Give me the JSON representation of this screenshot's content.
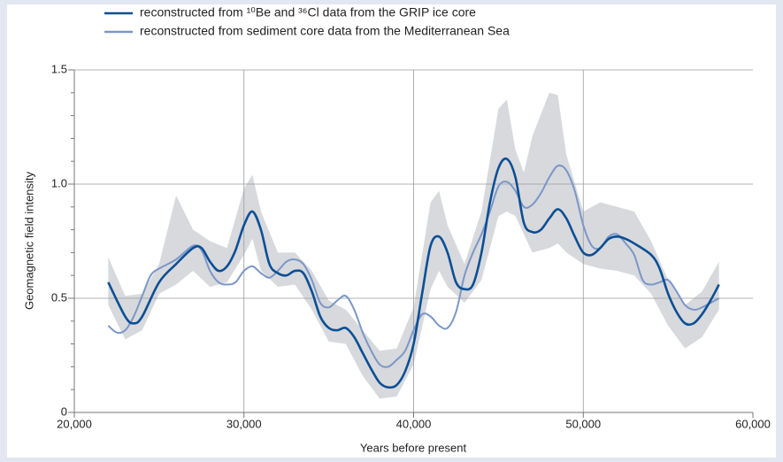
{
  "chart_data": {
    "type": "line",
    "xlabel": "Years before present",
    "ylabel": "Geomagnetic field intensity",
    "xlim": [
      20000,
      60000
    ],
    "xticks": [
      {
        "value": 20000,
        "label": "20,000"
      },
      {
        "value": 30000,
        "label": "30,000"
      },
      {
        "value": 40000,
        "label": "40,000"
      },
      {
        "value": 50000,
        "label": "50,000"
      },
      {
        "value": 60000,
        "label": "60,000"
      }
    ],
    "ylim": [
      0,
      1.5
    ],
    "yticks": [
      0,
      0.5,
      {
        "value": 1,
        "label": "1.0"
      },
      1.5
    ],
    "yminorticks": [
      0.1,
      0.2,
      0.3,
      0.4,
      0.6,
      0.7,
      0.8,
      0.9,
      1.1,
      1.2,
      1.3,
      1.4
    ],
    "grid": true,
    "series": [
      {
        "name": "reconstructed from ¹⁰Be and ³⁶Cl data from the GRIP ice core",
        "color": "#0b4f94",
        "x": [
          22000,
          23000,
          23500,
          24000,
          25000,
          26000,
          27000,
          27500,
          28000,
          28500,
          29000,
          29500,
          30000,
          30500,
          31000,
          31500,
          32000,
          32500,
          33000,
          33500,
          34000,
          34500,
          35000,
          35500,
          36000,
          36500,
          37000,
          37500,
          38000,
          38500,
          39000,
          39500,
          40000,
          40500,
          41000,
          41500,
          42000,
          42500,
          43000,
          43500,
          44000,
          44500,
          45000,
          45500,
          46000,
          46500,
          47000,
          47500,
          48000,
          48500,
          49000,
          49500,
          50000,
          50500,
          51000,
          51500,
          52000,
          52500,
          53000,
          54000,
          54500,
          55000,
          55500,
          56000,
          56500,
          57000,
          57500,
          58000
        ],
        "values": [
          0.57,
          0.42,
          0.39,
          0.42,
          0.57,
          0.65,
          0.72,
          0.72,
          0.66,
          0.62,
          0.64,
          0.71,
          0.82,
          0.88,
          0.8,
          0.65,
          0.61,
          0.6,
          0.62,
          0.61,
          0.53,
          0.42,
          0.37,
          0.36,
          0.37,
          0.33,
          0.26,
          0.19,
          0.13,
          0.11,
          0.12,
          0.18,
          0.3,
          0.52,
          0.73,
          0.77,
          0.7,
          0.57,
          0.54,
          0.56,
          0.7,
          0.92,
          1.07,
          1.11,
          1.03,
          0.83,
          0.79,
          0.8,
          0.85,
          0.89,
          0.85,
          0.77,
          0.7,
          0.69,
          0.72,
          0.76,
          0.77,
          0.76,
          0.74,
          0.69,
          0.63,
          0.52,
          0.44,
          0.39,
          0.39,
          0.43,
          0.49,
          0.56
        ]
      },
      {
        "name": "reconstructed from sediment core data from the Mediterranean Sea",
        "color": "#7b96c8",
        "x": [
          22000,
          22500,
          23000,
          23500,
          24000,
          24500,
          25000,
          26000,
          27000,
          27500,
          28000,
          28500,
          29000,
          29500,
          30000,
          30500,
          31000,
          31500,
          32000,
          32500,
          33000,
          33500,
          34000,
          34500,
          35000,
          35500,
          36000,
          36500,
          37000,
          37500,
          38000,
          38500,
          39000,
          39500,
          40000,
          40500,
          41000,
          41500,
          42000,
          42500,
          43000,
          43500,
          44000,
          44500,
          45000,
          45500,
          46000,
          46500,
          47000,
          47500,
          48000,
          48500,
          49000,
          49500,
          50000,
          50500,
          51000,
          51500,
          52000,
          52500,
          53000,
          53500,
          54000,
          54500,
          55000,
          55500,
          56000,
          56500,
          57000,
          58000
        ],
        "values": [
          0.38,
          0.35,
          0.36,
          0.42,
          0.51,
          0.6,
          0.63,
          0.67,
          0.73,
          0.71,
          0.62,
          0.57,
          0.56,
          0.57,
          0.62,
          0.64,
          0.61,
          0.59,
          0.62,
          0.66,
          0.67,
          0.65,
          0.58,
          0.48,
          0.46,
          0.49,
          0.51,
          0.45,
          0.35,
          0.27,
          0.21,
          0.2,
          0.23,
          0.27,
          0.36,
          0.43,
          0.42,
          0.38,
          0.37,
          0.44,
          0.6,
          0.7,
          0.78,
          0.88,
          0.99,
          1.01,
          0.97,
          0.9,
          0.91,
          0.96,
          1.03,
          1.08,
          1.06,
          0.97,
          0.82,
          0.73,
          0.72,
          0.77,
          0.78,
          0.74,
          0.69,
          0.58,
          0.56,
          0.57,
          0.58,
          0.53,
          0.47,
          0.45,
          0.46,
          0.5
        ]
      }
    ],
    "band": {
      "color": "#d7d9dd",
      "x": [
        22000,
        23000,
        24000,
        25000,
        26000,
        27000,
        28000,
        29000,
        30000,
        30500,
        31000,
        32000,
        33000,
        34000,
        35000,
        36000,
        37000,
        38000,
        39000,
        40000,
        41000,
        41500,
        42000,
        43000,
        44000,
        45000,
        45500,
        46000,
        46500,
        47000,
        48000,
        48500,
        49000,
        50000,
        51000,
        52000,
        53000,
        54000,
        55000,
        56000,
        57000,
        58000
      ],
      "upper": [
        0.68,
        0.51,
        0.52,
        0.65,
        0.95,
        0.8,
        0.75,
        0.72,
        0.98,
        1.04,
        0.88,
        0.7,
        0.7,
        0.62,
        0.49,
        0.45,
        0.36,
        0.27,
        0.28,
        0.46,
        0.92,
        0.97,
        0.82,
        0.65,
        0.88,
        1.33,
        1.37,
        1.15,
        1.05,
        1.21,
        1.4,
        1.39,
        1.13,
        0.88,
        0.92,
        0.9,
        0.88,
        0.75,
        0.58,
        0.47,
        0.53,
        0.66
      ],
      "lower": [
        0.47,
        0.32,
        0.36,
        0.52,
        0.56,
        0.62,
        0.55,
        0.57,
        0.69,
        0.76,
        0.62,
        0.55,
        0.56,
        0.45,
        0.31,
        0.3,
        0.16,
        0.06,
        0.07,
        0.21,
        0.54,
        0.62,
        0.55,
        0.48,
        0.58,
        0.86,
        0.88,
        0.86,
        0.78,
        0.7,
        0.72,
        0.74,
        0.7,
        0.65,
        0.63,
        0.62,
        0.6,
        0.52,
        0.38,
        0.28,
        0.33,
        0.45
      ]
    }
  }
}
